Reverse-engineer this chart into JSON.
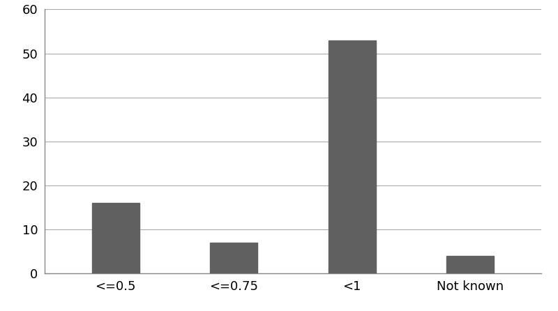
{
  "categories": [
    "<=0.5",
    "<=0.75",
    "<1",
    "Not known"
  ],
  "values": [
    16,
    7,
    53,
    4
  ],
  "bar_color": "#606060",
  "background_color": "#ffffff",
  "ylim": [
    0,
    60
  ],
  "yticks": [
    0,
    10,
    20,
    30,
    40,
    50,
    60
  ],
  "grid_color": "#aaaaaa",
  "bar_width": 0.4,
  "tick_fontsize": 13,
  "spine_color": "#888888"
}
